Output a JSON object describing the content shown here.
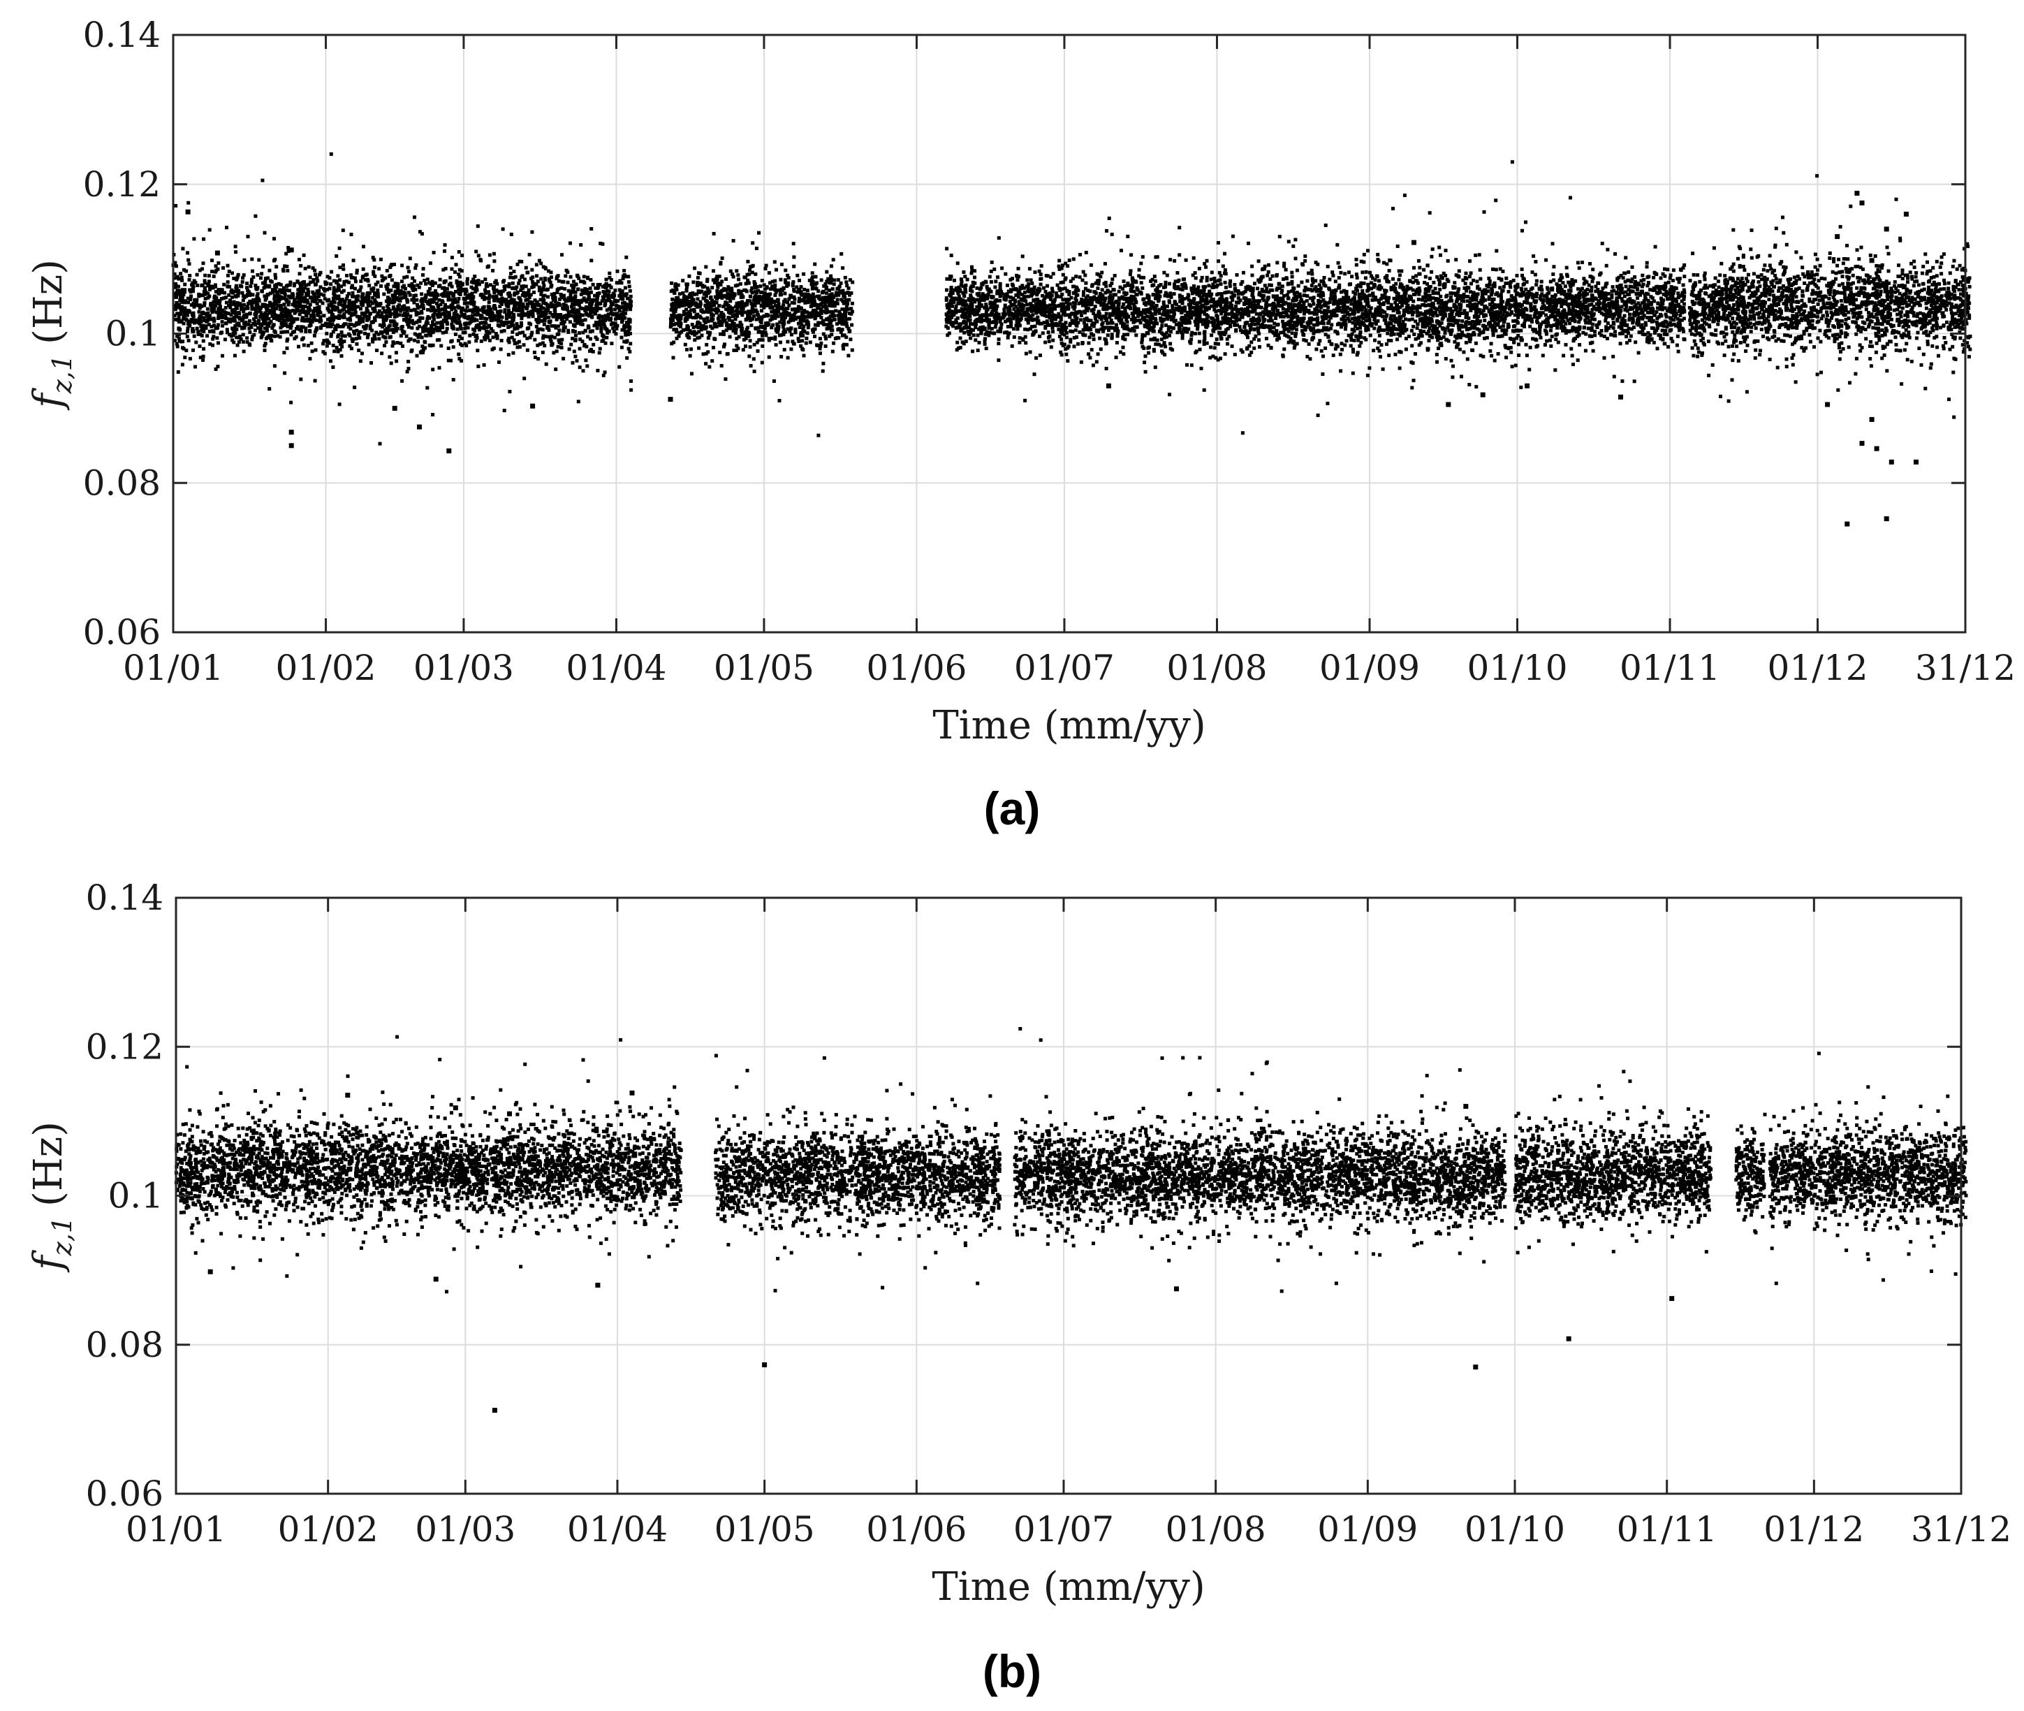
{
  "chart_data": [
    {
      "type": "scatter",
      "panel_label": "(a)",
      "xlabel": "Time (mm/yy)",
      "ylabel": {
        "main": "f",
        "sub": "z,1",
        "unit": "(Hz)"
      },
      "ylim": [
        0.06,
        0.14
      ],
      "yticks": [
        0.06,
        0.08,
        0.1,
        0.12,
        0.14
      ],
      "ytick_labels": [
        "0.06",
        "0.08",
        "0.1",
        "0.12",
        "0.14"
      ],
      "xlim": [
        "01/01",
        "31/12"
      ],
      "xtick_labels": [
        "01/01",
        "01/02",
        "01/03",
        "01/04",
        "01/05",
        "01/06",
        "01/07",
        "01/08",
        "01/09",
        "01/10",
        "01/11",
        "01/12",
        "31/12"
      ],
      "grid": true,
      "marker_color": "#000000",
      "grid_color": "#dcdcdc",
      "segments": [
        {
          "start": "01/01",
          "end": "03/04",
          "center": 0.1033,
          "spread": 0.0027
        },
        {
          "start": "12/04",
          "end": "18/05",
          "center": 0.1033,
          "spread": 0.0025
        },
        {
          "start": "07/06",
          "end": "29/06",
          "center": 0.1035,
          "spread": 0.0022
        },
        {
          "start": "30/06",
          "end": "06/10",
          "center": 0.1032,
          "spread": 0.0026
        },
        {
          "start": "07/10",
          "end": "03/11",
          "center": 0.1034,
          "spread": 0.0024
        },
        {
          "start": "05/11",
          "end": "12/11",
          "center": 0.103,
          "spread": 0.0025
        },
        {
          "start": "13/11",
          "end": "31/12",
          "center": 0.1036,
          "spread": 0.003
        }
      ],
      "outliers": [
        [
          "04/01",
          0.1163
        ],
        [
          "25/01",
          0.0868
        ],
        [
          "25/01",
          0.085
        ],
        [
          "26/02",
          0.0843
        ],
        [
          "20/02",
          0.0875
        ],
        [
          "15/03",
          0.0903
        ],
        [
          "15/02",
          0.09
        ],
        [
          "12/04",
          0.0912
        ],
        [
          "25/01",
          0.1112
        ],
        [
          "10/01",
          0.1108
        ],
        [
          "10/09",
          0.1122
        ],
        [
          "10/07",
          0.093
        ],
        [
          "09/12",
          0.1188
        ],
        [
          "10/12",
          0.1175
        ],
        [
          "19/12",
          0.116
        ],
        [
          "07/12",
          0.0745
        ],
        [
          "15/12",
          0.0752
        ],
        [
          "10/12",
          0.0853
        ],
        [
          "13/12",
          0.0846
        ],
        [
          "16/12",
          0.0828
        ],
        [
          "21/12",
          0.0828
        ],
        [
          "12/12",
          0.0885
        ],
        [
          "03/12",
          0.0905
        ],
        [
          "17/09",
          0.0905
        ],
        [
          "24/09",
          0.0918
        ],
        [
          "03/10",
          0.093
        ],
        [
          "22/10",
          0.0915
        ],
        [
          "12/12",
          0.1098
        ],
        [
          "05/12",
          0.113
        ],
        [
          "15/12",
          0.114
        ]
      ]
    },
    {
      "type": "scatter",
      "panel_label": "(b)",
      "xlabel": "Time (mm/yy)",
      "ylabel": {
        "main": "f",
        "sub": "z,1",
        "unit": "(Hz)"
      },
      "ylim": [
        0.06,
        0.14
      ],
      "yticks": [
        0.06,
        0.08,
        0.1,
        0.12,
        0.14
      ],
      "ytick_labels": [
        "0.06",
        "0.08",
        "0.1",
        "0.12",
        "0.14"
      ],
      "xlim": [
        "01/01",
        "31/12"
      ],
      "xtick_labels": [
        "01/01",
        "01/02",
        "01/03",
        "01/04",
        "01/05",
        "01/06",
        "01/07",
        "01/08",
        "01/09",
        "01/10",
        "01/11",
        "01/12",
        "31/12"
      ],
      "grid": true,
      "marker_color": "#000000",
      "grid_color": "#dcdcdc",
      "segments": [
        {
          "start": "01/01",
          "end": "13/04",
          "center": 0.1035,
          "spread": 0.003
        },
        {
          "start": "21/04",
          "end": "17/06",
          "center": 0.1027,
          "spread": 0.003
        },
        {
          "start": "21/06",
          "end": "16/07",
          "center": 0.1025,
          "spread": 0.003
        },
        {
          "start": "17/07",
          "end": "08/09",
          "center": 0.1028,
          "spread": 0.003
        },
        {
          "start": "09/09",
          "end": "28/09",
          "center": 0.1025,
          "spread": 0.003
        },
        {
          "start": "01/10",
          "end": "09/11",
          "center": 0.1027,
          "spread": 0.003
        },
        {
          "start": "15/11",
          "end": "20/11",
          "center": 0.1028,
          "spread": 0.0025
        },
        {
          "start": "22/11",
          "end": "31/12",
          "center": 0.1028,
          "spread": 0.003
        }
      ],
      "outliers": [
        [
          "05/02",
          0.1135
        ],
        [
          "04/04",
          0.1138
        ],
        [
          "07/03",
          0.0712
        ],
        [
          "01/05",
          0.0773
        ],
        [
          "24/07",
          0.0875
        ],
        [
          "23/09",
          0.077
        ],
        [
          "12/10",
          0.0808
        ],
        [
          "02/11",
          0.0862
        ],
        [
          "21/09",
          0.112
        ],
        [
          "10/03",
          0.111
        ],
        [
          "23/02",
          0.0888
        ],
        [
          "28/03",
          0.088
        ],
        [
          "08/01",
          0.0898
        ],
        [
          "27/02",
          0.1118
        ]
      ]
    }
  ]
}
